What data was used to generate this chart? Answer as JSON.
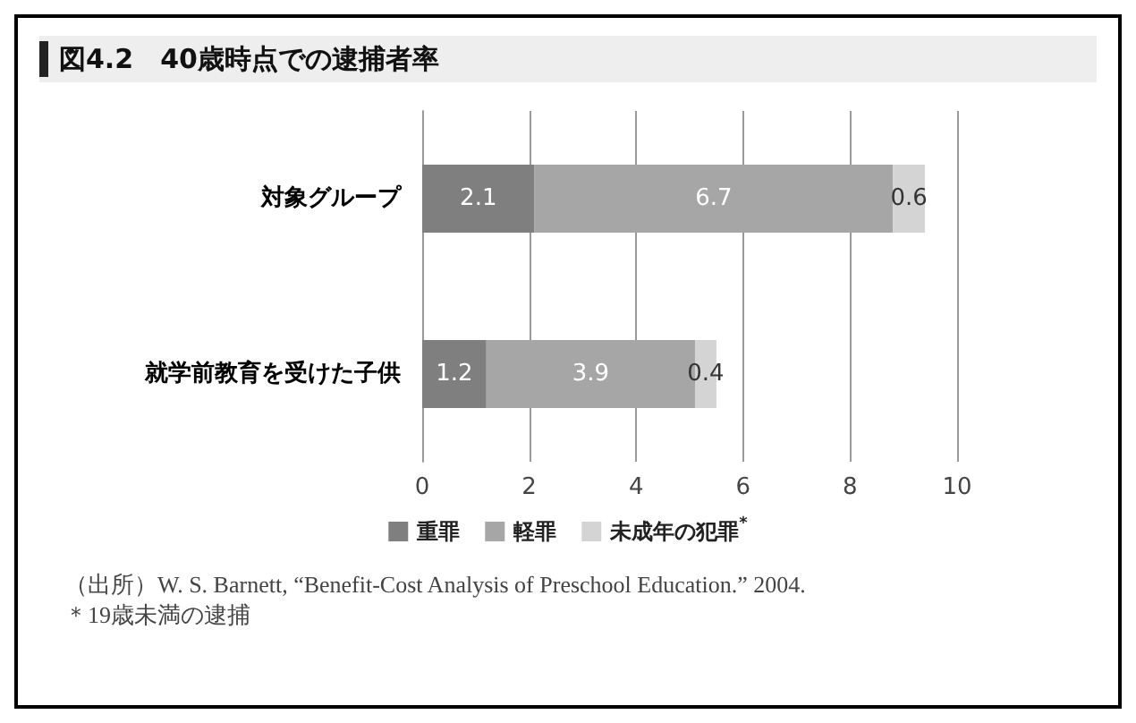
{
  "chart_data": {
    "type": "bar",
    "orientation": "horizontal",
    "stacked": true,
    "title": "図4.2　40歳時点での逮捕者率",
    "categories": [
      "対象グループ",
      "就学前教育を受けた子供"
    ],
    "series": [
      {
        "name": "重罪",
        "color": "#7f7f7f",
        "values": [
          2.1,
          1.2
        ]
      },
      {
        "name": "軽罪",
        "color": "#a6a6a6",
        "values": [
          6.7,
          3.9
        ]
      },
      {
        "name": "未成年の犯罪$^{*}$",
        "color": "#d4d4d4",
        "values": [
          0.6,
          0.4
        ]
      }
    ],
    "xlim": [
      0,
      10
    ],
    "xticks": [
      0,
      2,
      4,
      6,
      8,
      10
    ],
    "grid": "x",
    "legend": "bottom",
    "data_labels": true,
    "annotations": [
      "（出所）W. S. Barnett, “Benefit-Cost Analysis of Preschool Education.” 2004.",
      "＊19歳未満の逮捕"
    ]
  }
}
